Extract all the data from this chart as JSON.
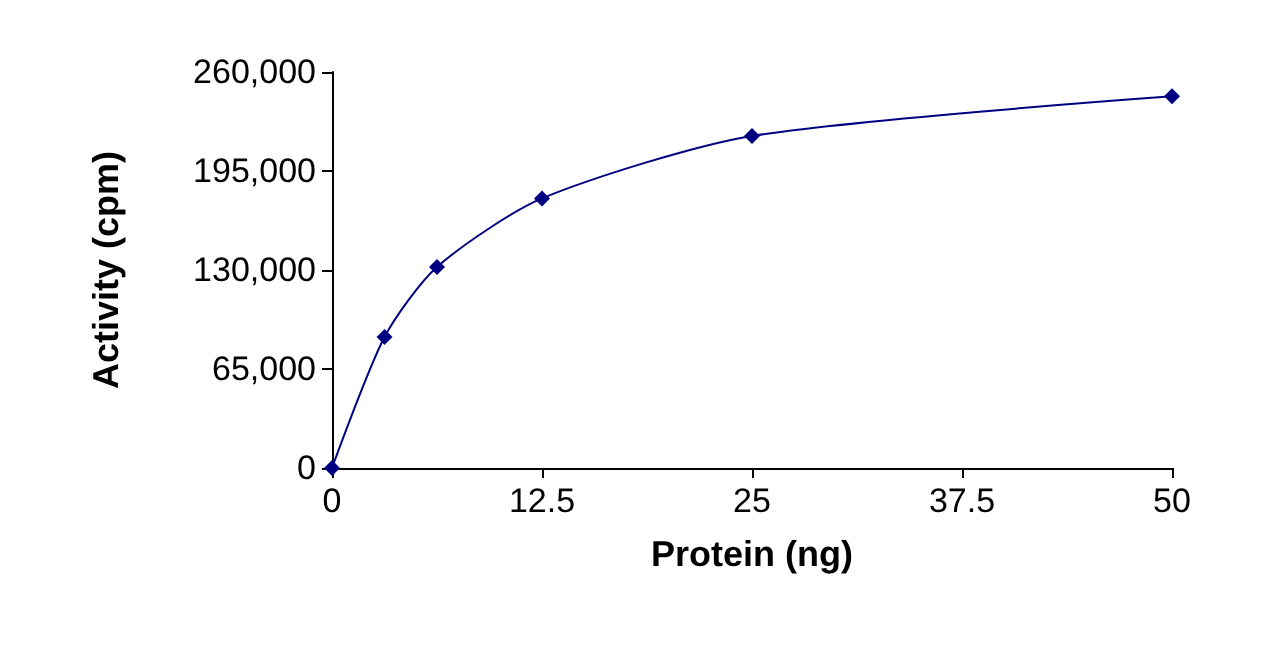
{
  "chart_data": {
    "type": "line",
    "xlabel": "Protein (ng)",
    "ylabel": "Activity (cpm)",
    "x": [
      0,
      3.125,
      6.25,
      12.5,
      25,
      50
    ],
    "series": [
      {
        "color": "#000080",
        "values": [
          0,
          86000,
          132000,
          177000,
          218000,
          244000
        ]
      }
    ],
    "xlim": [
      0,
      50
    ],
    "xticks": [
      0,
      12.5,
      25,
      37.5,
      50
    ],
    "ylim": [
      0,
      260000
    ],
    "yticks": [
      0,
      {
        "value": 65000,
        "label": "65,000"
      },
      {
        "value": 130000,
        "label": "130,000"
      },
      {
        "value": 195000,
        "label": "195,000"
      },
      {
        "value": 260000,
        "label": "260,000"
      }
    ],
    "grid": false,
    "marker": "diamond",
    "line_style": "solid"
  }
}
